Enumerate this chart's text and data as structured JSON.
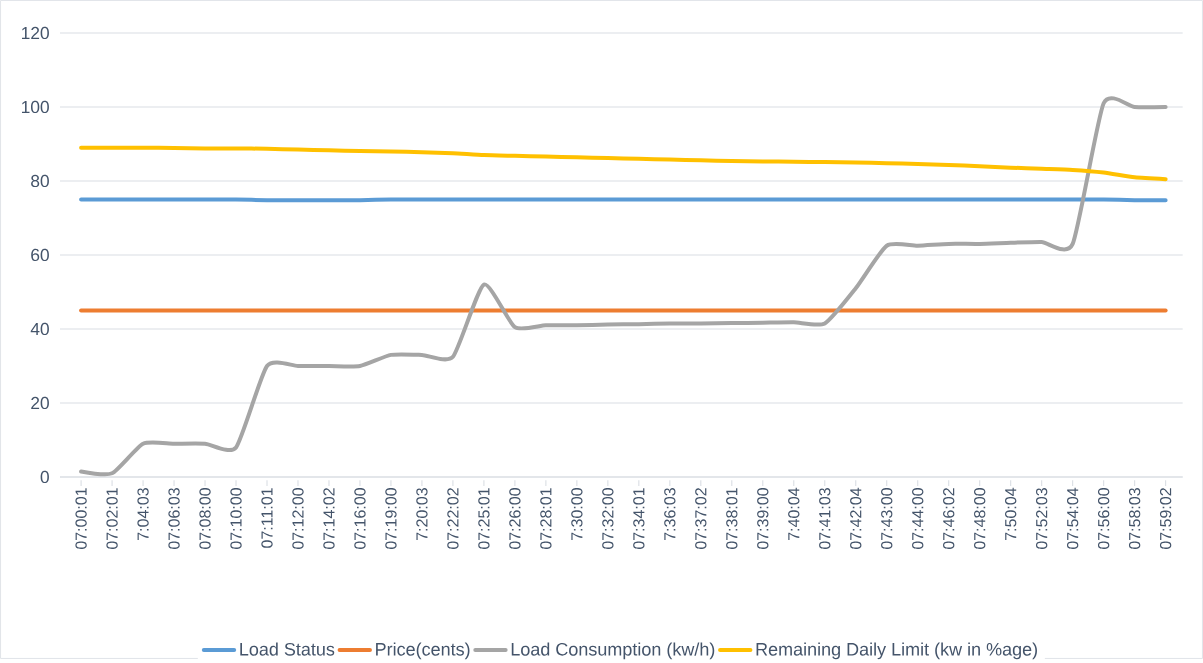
{
  "chart_data": {
    "type": "line",
    "categories": [
      "07:00:01",
      "07:02:01",
      "7:04:03",
      "07:06:03",
      "07:08:00",
      "07:10:00",
      "07:11:01",
      "07:12:00",
      "07:14:02",
      "07:16:00",
      "07:19:00",
      "7:20:03",
      "07:22:02",
      "07:25:01",
      "07:26:00",
      "07:28:01",
      "7:30:00",
      "07:32:00",
      "07:34:01",
      "7:36:03",
      "07:37:02",
      "07:38:01",
      "07:39:00",
      "7:40:04",
      "07:41:03",
      "07:42:04",
      "07:43:00",
      "07:44:00",
      "07:46:02",
      "07:48:00",
      "7:50:04",
      "07:52:03",
      "07:54:04",
      "07:56:00",
      "07:58:03",
      "07:59:02"
    ],
    "series": [
      {
        "name": "Load Status",
        "color": "#5b9bd5",
        "values": [
          75,
          75,
          75,
          75,
          75,
          75,
          74.8,
          74.8,
          74.8,
          74.8,
          75,
          75,
          75,
          75,
          75,
          75,
          75,
          75,
          75,
          75,
          75,
          75,
          75,
          75,
          75,
          75,
          75,
          75,
          75,
          75,
          75,
          75,
          75,
          75,
          74.8,
          74.8
        ]
      },
      {
        "name": "Price(cents)",
        "color": "#ed7d31",
        "values": [
          45,
          45,
          45,
          45,
          45,
          45,
          45,
          45,
          45,
          45,
          45,
          45,
          45,
          45,
          45,
          45,
          45,
          45,
          45,
          45,
          45,
          45,
          45,
          45,
          45,
          45,
          45,
          45,
          45,
          45,
          45,
          45,
          45,
          45,
          45,
          45
        ]
      },
      {
        "name": "Load Consumption (kw/h)",
        "color": "#a5a5a5",
        "values": [
          1.5,
          1,
          9,
          9,
          9,
          8,
          30,
          30,
          30,
          30,
          33,
          33,
          32.5,
          52,
          40.5,
          41,
          41,
          41.2,
          41.3,
          41.5,
          41.5,
          41.6,
          41.7,
          41.8,
          41.5,
          51,
          62.5,
          62.5,
          63,
          63,
          63.3,
          63.5,
          63,
          101,
          100,
          100
        ]
      },
      {
        "name": "Remaining Daily Limit (kw in %age)",
        "color": "#ffc000",
        "values": [
          89,
          89,
          89,
          88.9,
          88.8,
          88.8,
          88.7,
          88.5,
          88.3,
          88.1,
          88,
          87.8,
          87.5,
          87,
          86.8,
          86.6,
          86.4,
          86.2,
          86,
          85.8,
          85.6,
          85.4,
          85.3,
          85.2,
          85.1,
          85,
          84.8,
          84.6,
          84.3,
          84,
          83.6,
          83.3,
          83,
          82.3,
          81,
          80.5
        ]
      }
    ],
    "ylim": [
      0,
      120
    ],
    "yticks": [
      0,
      20,
      40,
      60,
      80,
      100,
      120
    ],
    "grid": "y",
    "legend": "bottom"
  }
}
